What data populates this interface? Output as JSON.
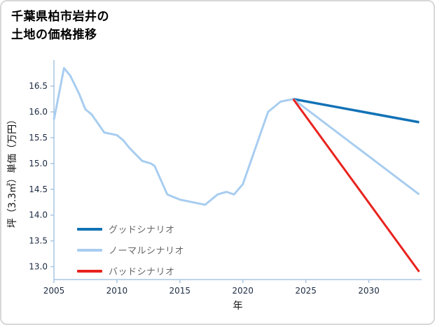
{
  "title": {
    "line1": "千葉県柏市岩井の",
    "line2": "土地の価格推移"
  },
  "chart_data": {
    "type": "line",
    "title": "千葉県柏市岩井の土地の価格推移",
    "xlabel": "年",
    "ylabel": "坪（3.3㎡）単価（万円）",
    "xlim": [
      2005,
      2034.2
    ],
    "ylim": [
      12.75,
      16.95
    ],
    "x_ticks": [
      2005,
      2010,
      2015,
      2020,
      2025,
      2030
    ],
    "y_ticks": [
      "13.0",
      "13.5",
      "14.0",
      "14.5",
      "15.0",
      "15.5",
      "16.0",
      "16.5"
    ],
    "grid": false,
    "legend_position": "inside-bottom-left",
    "axis_color": "#a9c6e3",
    "series": [
      {
        "name": "グッドシナリオ",
        "color": "#1272b6",
        "width": 3.5,
        "x": [
          2024,
          2034
        ],
        "y": [
          16.25,
          15.8
        ]
      },
      {
        "name": "ノーマルシナリオ",
        "color": "#a8cdf0",
        "width": 3,
        "x": [
          2005,
          2005.8,
          2006.3,
          2007,
          2007.5,
          2008,
          2009,
          2010,
          2010.5,
          2011,
          2012,
          2012.7,
          2013,
          2014,
          2015,
          2016,
          2017,
          2018,
          2018.7,
          2019.3,
          2020,
          2021,
          2022,
          2023,
          2024,
          2034
        ],
        "y": [
          15.85,
          16.85,
          16.7,
          16.35,
          16.05,
          15.95,
          15.6,
          15.55,
          15.45,
          15.3,
          15.05,
          15.0,
          14.95,
          14.4,
          14.3,
          14.25,
          14.2,
          14.4,
          14.45,
          14.4,
          14.6,
          15.3,
          16.0,
          16.2,
          16.25,
          14.4
        ]
      },
      {
        "name": "バッドシナリオ",
        "color": "#e8231e",
        "width": 3,
        "x": [
          2024,
          2034
        ],
        "y": [
          16.25,
          12.9
        ]
      }
    ]
  }
}
